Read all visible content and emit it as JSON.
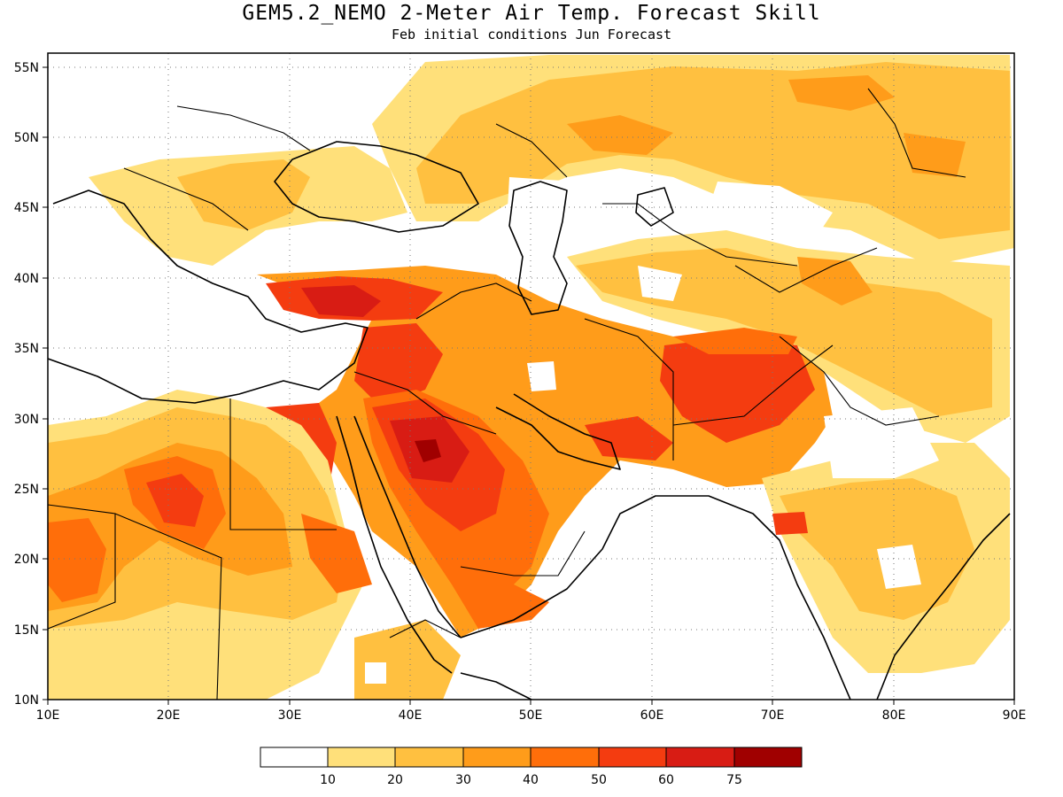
{
  "title": "GEM5.2_NEMO 2-Meter Air Temp. Forecast Skill",
  "subtitle": "Feb initial conditions  Jun Forecast",
  "map": {
    "lon_range": [
      10,
      90
    ],
    "lat_range": [
      10,
      56
    ],
    "lon_ticks": [
      "10E",
      "20E",
      "30E",
      "40E",
      "50E",
      "60E",
      "70E",
      "80E",
      "90E"
    ],
    "lat_ticks": [
      "10N",
      "15N",
      "20N",
      "25N",
      "30N",
      "35N",
      "40N",
      "45N",
      "50N",
      "55N"
    ]
  },
  "legend": {
    "labels": [
      "10",
      "20",
      "30",
      "40",
      "50",
      "60",
      "75"
    ],
    "colors": [
      "#ffffff",
      "#ffe07a",
      "#ffc040",
      "#ff9c1a",
      "#ff6e0a",
      "#f43c10",
      "#d81c14",
      "#a00000"
    ]
  }
}
